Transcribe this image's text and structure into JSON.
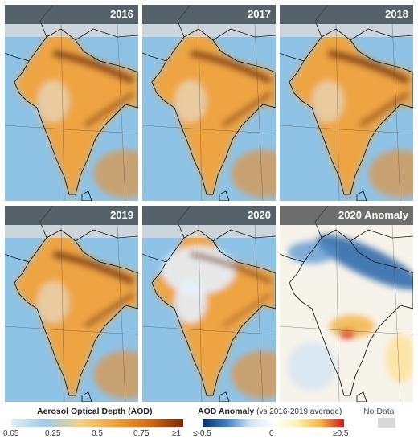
{
  "panels": [
    {
      "title": "2016",
      "variant": "aod",
      "intensity": 1.0
    },
    {
      "title": "2017",
      "variant": "aod",
      "intensity": 0.95
    },
    {
      "title": "2018",
      "variant": "aod",
      "intensity": 1.05
    },
    {
      "title": "2019",
      "variant": "aod",
      "intensity": 1.0
    },
    {
      "title": "2020",
      "variant": "aod-low",
      "intensity": 0.6
    },
    {
      "title": "2020 Anomaly",
      "variant": "anomaly",
      "intensity": 1.0
    }
  ],
  "legend": {
    "aod": {
      "title": "Aerosol Optical Depth (AOD)",
      "ticks": [
        "0.05",
        "0.25",
        "0.5",
        "0.75",
        "≥1"
      ],
      "colors": [
        "#deeefa",
        "#9fcbe9",
        "#f0d28a",
        "#f0a23c",
        "#d86a14",
        "#7a2a08"
      ]
    },
    "anomaly": {
      "title": "AOD Anomaly",
      "subtitle": "(vs 2016-2019 average)",
      "ticks": [
        "≤-0.5",
        "0",
        "≥0.5"
      ],
      "colors": [
        "#08306b",
        "#3d7fc1",
        "#cfe2f3",
        "#ffffff",
        "#fff2b3",
        "#f7b548",
        "#d0161a"
      ]
    },
    "nodata": {
      "label": "No Data",
      "color": "#d9d9d9"
    }
  },
  "colors": {
    "ocean_aod": "#8fc3e6",
    "land_aod": "#eea443",
    "haze_dark": "#6b2506",
    "clean_blue": "#e4f1fb",
    "anomaly_bg": "#f6f3ea",
    "anomaly_blue": "#1a5aa3"
  }
}
